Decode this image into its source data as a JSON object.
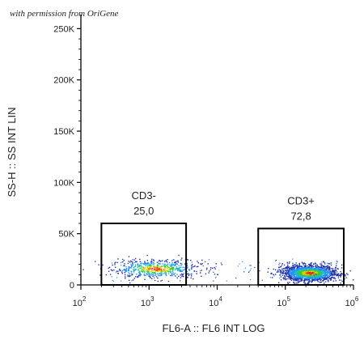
{
  "watermark": "with permission from OriGene",
  "chart_data": {
    "type": "scatter",
    "subtype": "flow-cytometry-density-dot-plot",
    "xlabel": "FL6-A :: FL6 INT LOG",
    "ylabel": "SS-H :: SS INT LIN",
    "xscale": "log",
    "xlim": [
      100,
      1000000
    ],
    "x_ticks": [
      {
        "base": "10",
        "exp": "2",
        "value": 100
      },
      {
        "base": "10",
        "exp": "3",
        "value": 1000
      },
      {
        "base": "10",
        "exp": "4",
        "value": 10000
      },
      {
        "base": "10",
        "exp": "5",
        "value": 100000
      },
      {
        "base": "10",
        "exp": "6",
        "value": 1000000
      }
    ],
    "ylim": [
      0,
      262144
    ],
    "y_ticks": [
      {
        "label": "0",
        "value": 0
      },
      {
        "label": "50K",
        "value": 50000
      },
      {
        "label": "100K",
        "value": 100000
      },
      {
        "label": "150K",
        "value": 150000
      },
      {
        "label": "200K",
        "value": 200000
      },
      {
        "label": "250K",
        "value": 250000
      }
    ],
    "grid": false,
    "populations": [
      {
        "center_log_x": 3.1,
        "spread_log_x": 0.33,
        "center_y": 16000,
        "spread_y": 4500,
        "weight": 0.25
      },
      {
        "center_log_x": 5.35,
        "spread_log_x": 0.2,
        "center_y": 12000,
        "spread_y": 3800,
        "weight": 0.73
      }
    ],
    "gates": [
      {
        "name": "CD3-",
        "value": "25,0",
        "x_range": [
          200,
          3500
        ],
        "y_range": [
          0,
          60000
        ]
      },
      {
        "name": "CD3+",
        "value": "72,8",
        "x_range": [
          40000,
          720000
        ],
        "y_range": [
          0,
          55000
        ]
      }
    ],
    "density_colors": [
      "#2233aa",
      "#1e90ff",
      "#22bbbb",
      "#33cc33",
      "#ddcc00",
      "#ff3300"
    ]
  }
}
